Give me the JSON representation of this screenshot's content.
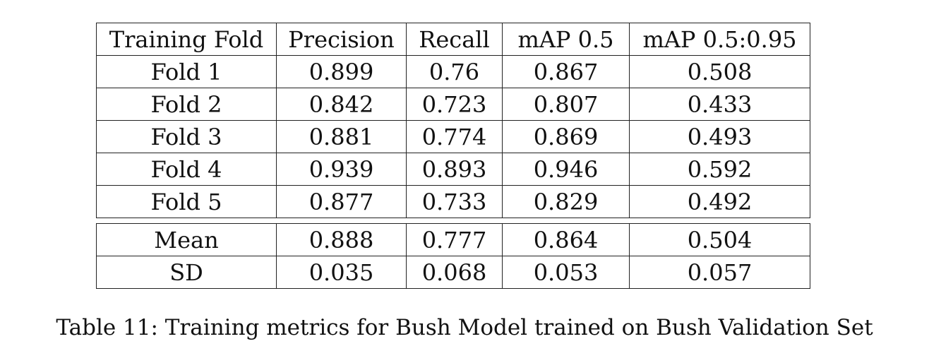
{
  "table": {
    "headers": [
      "Training Fold",
      "Precision",
      "Recall",
      "mAP 0.5",
      "mAP 0.5:0.95"
    ],
    "rows": [
      [
        "Fold 1",
        "0.899",
        "0.76",
        "0.867",
        "0.508"
      ],
      [
        "Fold 2",
        "0.842",
        "0.723",
        "0.807",
        "0.433"
      ],
      [
        "Fold 3",
        "0.881",
        "0.774",
        "0.869",
        "0.493"
      ],
      [
        "Fold 4",
        "0.939",
        "0.893",
        "0.946",
        "0.592"
      ],
      [
        "Fold 5",
        "0.877",
        "0.733",
        "0.829",
        "0.492"
      ]
    ],
    "summary_rows": [
      [
        "Mean",
        "0.888",
        "0.777",
        "0.864",
        "0.504"
      ],
      [
        "SD",
        "0.035",
        "0.068",
        "0.053",
        "0.057"
      ]
    ]
  },
  "caption": "Table 11: Training metrics for Bush Model trained on Bush Validation Set"
}
